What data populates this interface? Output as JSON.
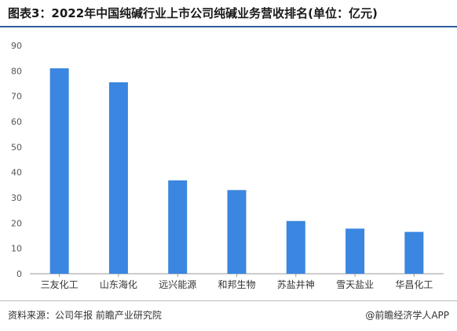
{
  "header": {
    "title": "图表3：2022年中国纯碱行业上市公司纯碱业务营收排名(单位：亿元)"
  },
  "footer": {
    "source": "资料来源：公司年报 前瞻产业研究院",
    "brand": "@前瞻经济学人APP"
  },
  "colors": {
    "bar": "#3b86e0",
    "axis": "#999999",
    "title_rule": "#2f5f9e"
  },
  "chart_data": {
    "type": "bar",
    "title": "图表3：2022年中国纯碱行业上市公司纯碱业务营收排名(单位：亿元)",
    "categories": [
      "三友化工",
      "山东海化",
      "远兴能源",
      "和邦生物",
      "苏盐井神",
      "雪天盐业",
      "华昌化工"
    ],
    "values": [
      81,
      75.5,
      36.8,
      33,
      20.8,
      17.8,
      16.5
    ],
    "ylim": [
      0,
      90
    ],
    "yticks": [
      0,
      10,
      20,
      30,
      40,
      50,
      60,
      70,
      80,
      90
    ],
    "xlabel": "",
    "ylabel": "",
    "grid": false,
    "legend": "none"
  }
}
